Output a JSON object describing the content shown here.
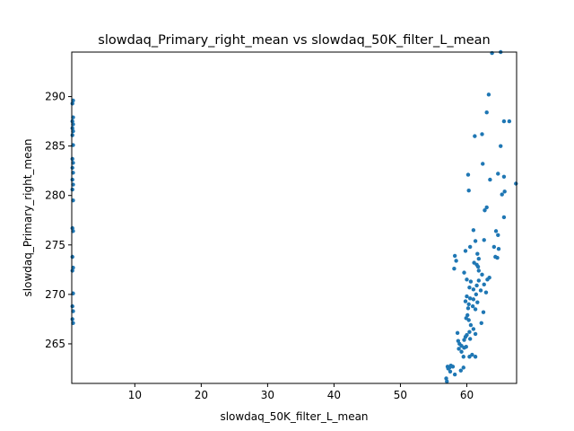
{
  "chart_data": {
    "type": "scatter",
    "title": "slowdaq_Primary_right_mean vs slowdaq_50K_filter_L_mean",
    "xlabel": "slowdaq_50K_filter_L_mean",
    "ylabel": "slowdaq_Primary_right_mean",
    "xlim": [
      0.5,
      67.5
    ],
    "ylim": [
      261,
      294.5
    ],
    "xticks": [
      10,
      20,
      30,
      40,
      50,
      60
    ],
    "yticks": [
      265,
      270,
      275,
      280,
      285,
      290
    ],
    "grid": false,
    "legend": "none",
    "marker_color": "#1f77b4",
    "series": [
      {
        "points": [
          [
            0.7,
            289.6
          ],
          [
            0.6,
            289.3
          ],
          [
            0.7,
            287.9
          ],
          [
            0.6,
            287.5
          ],
          [
            0.7,
            287.2
          ],
          [
            0.6,
            286.8
          ],
          [
            0.7,
            286.5
          ],
          [
            0.6,
            286.1
          ],
          [
            0.7,
            285.1
          ],
          [
            0.6,
            283.7
          ],
          [
            0.7,
            283.3
          ],
          [
            0.6,
            282.8
          ],
          [
            0.7,
            282.3
          ],
          [
            0.6,
            281.6
          ],
          [
            0.7,
            281.1
          ],
          [
            0.6,
            280.6
          ],
          [
            0.7,
            279.5
          ],
          [
            0.6,
            276.7
          ],
          [
            0.7,
            276.4
          ],
          [
            0.6,
            273.8
          ],
          [
            0.7,
            272.7
          ],
          [
            0.6,
            272.4
          ],
          [
            0.7,
            270.1
          ],
          [
            0.6,
            268.8
          ],
          [
            0.7,
            268.3
          ],
          [
            0.6,
            267.5
          ],
          [
            0.7,
            267.1
          ],
          [
            63.8,
            294.4
          ],
          [
            65.1,
            294.5
          ],
          [
            63.3,
            290.2
          ],
          [
            65.6,
            287.5
          ],
          [
            66.4,
            287.5
          ],
          [
            63.0,
            288.4
          ],
          [
            61.2,
            286.0
          ],
          [
            62.3,
            286.2
          ],
          [
            65.1,
            285.0
          ],
          [
            62.4,
            283.2
          ],
          [
            60.2,
            282.1
          ],
          [
            64.7,
            282.2
          ],
          [
            65.6,
            281.9
          ],
          [
            63.5,
            281.6
          ],
          [
            67.4,
            281.2
          ],
          [
            60.3,
            280.5
          ],
          [
            65.3,
            280.1
          ],
          [
            65.7,
            280.4
          ],
          [
            63.0,
            278.8
          ],
          [
            62.7,
            278.5
          ],
          [
            65.6,
            277.8
          ],
          [
            61.0,
            276.5
          ],
          [
            64.4,
            276.4
          ],
          [
            64.7,
            276.0
          ],
          [
            61.3,
            275.4
          ],
          [
            62.6,
            275.5
          ],
          [
            60.5,
            274.8
          ],
          [
            59.8,
            274.4
          ],
          [
            64.1,
            274.8
          ],
          [
            64.8,
            274.6
          ],
          [
            61.6,
            274.1
          ],
          [
            58.2,
            273.9
          ],
          [
            61.8,
            273.6
          ],
          [
            64.3,
            273.8
          ],
          [
            64.6,
            273.7
          ],
          [
            58.4,
            273.4
          ],
          [
            61.1,
            273.2
          ],
          [
            61.5,
            273.0
          ],
          [
            61.7,
            272.8
          ],
          [
            58.1,
            272.6
          ],
          [
            59.6,
            272.2
          ],
          [
            61.8,
            272.4
          ],
          [
            62.3,
            272.0
          ],
          [
            63.4,
            271.7
          ],
          [
            60.0,
            271.5
          ],
          [
            60.6,
            271.3
          ],
          [
            61.8,
            271.4
          ],
          [
            63.1,
            271.5
          ],
          [
            62.6,
            271.0
          ],
          [
            61.5,
            270.9
          ],
          [
            60.4,
            270.7
          ],
          [
            61.0,
            270.5
          ],
          [
            62.1,
            270.4
          ],
          [
            62.9,
            270.2
          ],
          [
            61.4,
            270.0
          ],
          [
            60.0,
            269.8
          ],
          [
            60.5,
            269.6
          ],
          [
            61.0,
            269.5
          ],
          [
            59.8,
            269.3
          ],
          [
            61.6,
            269.2
          ],
          [
            60.3,
            269.0
          ],
          [
            60.9,
            268.8
          ],
          [
            60.2,
            268.6
          ],
          [
            61.3,
            268.5
          ],
          [
            62.5,
            268.2
          ],
          [
            60.1,
            267.9
          ],
          [
            59.9,
            267.6
          ],
          [
            60.3,
            267.4
          ],
          [
            62.2,
            267.1
          ],
          [
            60.6,
            266.9
          ],
          [
            61.0,
            266.5
          ],
          [
            60.4,
            266.2
          ],
          [
            61.3,
            266.0
          ],
          [
            60.0,
            265.9
          ],
          [
            58.6,
            266.1
          ],
          [
            59.8,
            265.7
          ],
          [
            60.5,
            265.5
          ],
          [
            58.7,
            265.3
          ],
          [
            59.6,
            265.4
          ],
          [
            58.9,
            265.0
          ],
          [
            59.2,
            264.8
          ],
          [
            59.9,
            264.7
          ],
          [
            58.8,
            264.5
          ],
          [
            59.6,
            264.6
          ],
          [
            59.2,
            264.2
          ],
          [
            60.8,
            263.9
          ],
          [
            59.5,
            263.7
          ],
          [
            60.4,
            263.7
          ],
          [
            61.3,
            263.7
          ],
          [
            57.6,
            262.8
          ],
          [
            57.1,
            262.7
          ],
          [
            57.4,
            262.6
          ],
          [
            57.9,
            262.7
          ],
          [
            57.2,
            262.5
          ],
          [
            59.5,
            262.6
          ],
          [
            59.1,
            262.3
          ],
          [
            57.5,
            262.2
          ],
          [
            58.2,
            261.9
          ],
          [
            56.9,
            261.5
          ],
          [
            57.0,
            261.2
          ]
        ]
      }
    ]
  }
}
